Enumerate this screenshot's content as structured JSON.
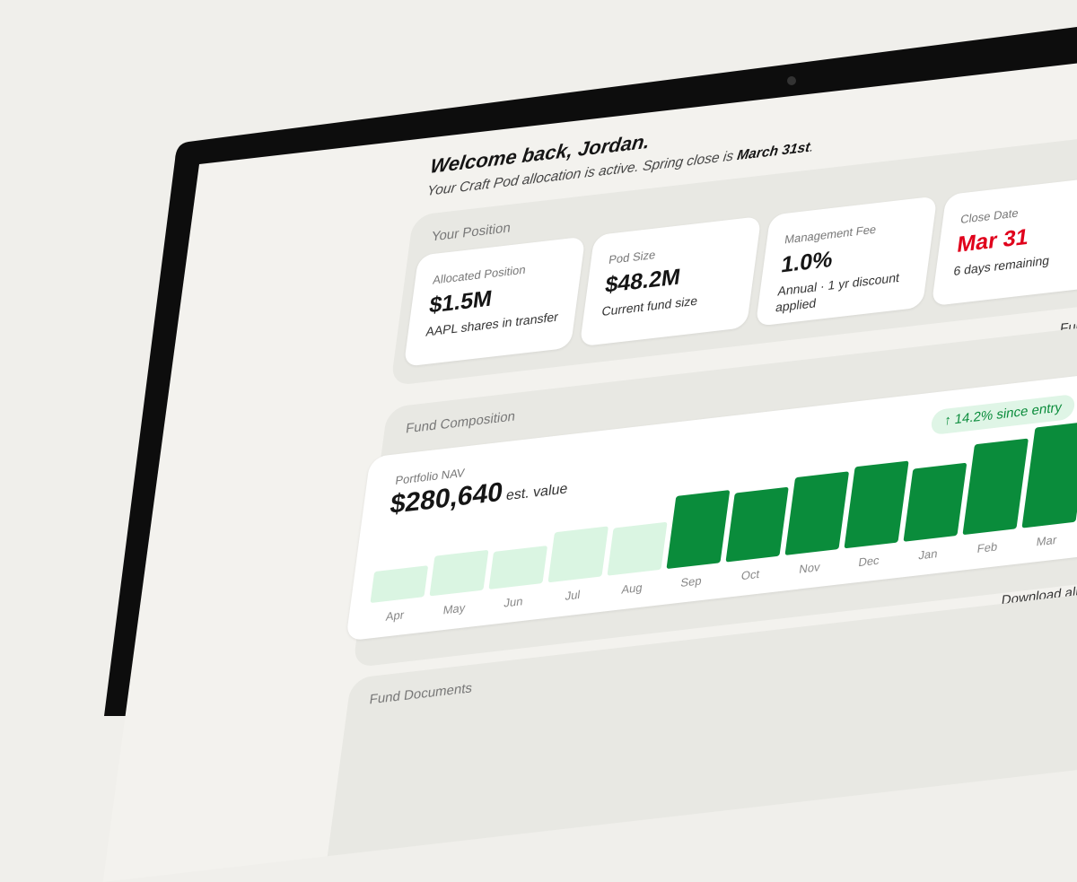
{
  "header": {
    "title": "Welcome back, Jordan.",
    "subtitle_prefix": "Your Craft Pod allocation is active. Spring close is ",
    "subtitle_date": "March 31st",
    "subtitle_suffix": "."
  },
  "position": {
    "title": "Your Position",
    "cards": [
      {
        "label": "Allocated Position",
        "value": "$1.5M",
        "note": "AAPL shares in transfer"
      },
      {
        "label": "Pod Size",
        "value": "$48.2M",
        "note": "Current fund size"
      },
      {
        "label": "Management Fee",
        "value": "1.0%",
        "note": "Annual · 1 yr discount applied"
      },
      {
        "label": "Close Date",
        "value": "Mar 31",
        "note": "6 days remaining"
      }
    ]
  },
  "composition": {
    "title": "Fund Composition",
    "link": "Full PPM",
    "nav_label": "Portfolio NAV",
    "nav_value": "$280,640",
    "nav_unit": "est. value",
    "badge": "14.2% since entry",
    "chart": {
      "type": "bar",
      "categories": [
        "Apr",
        "May",
        "Jun",
        "Jul",
        "Aug",
        "Sep",
        "Oct",
        "Nov",
        "Dec",
        "Jan",
        "Feb",
        "Mar"
      ],
      "values": [
        25,
        32,
        30,
        40,
        38,
        58,
        55,
        62,
        65,
        58,
        72,
        80
      ],
      "colors": [
        "#daf5e2",
        "#daf5e2",
        "#daf5e2",
        "#daf5e2",
        "#daf5e2",
        "#0a8c3b",
        "#0a8c3b",
        "#0a8c3b",
        "#0a8c3b",
        "#0a8c3b",
        "#0a8c3b",
        "#0a8c3b"
      ]
    }
  },
  "documents": {
    "title": "Fund Documents",
    "link": "Download all"
  }
}
